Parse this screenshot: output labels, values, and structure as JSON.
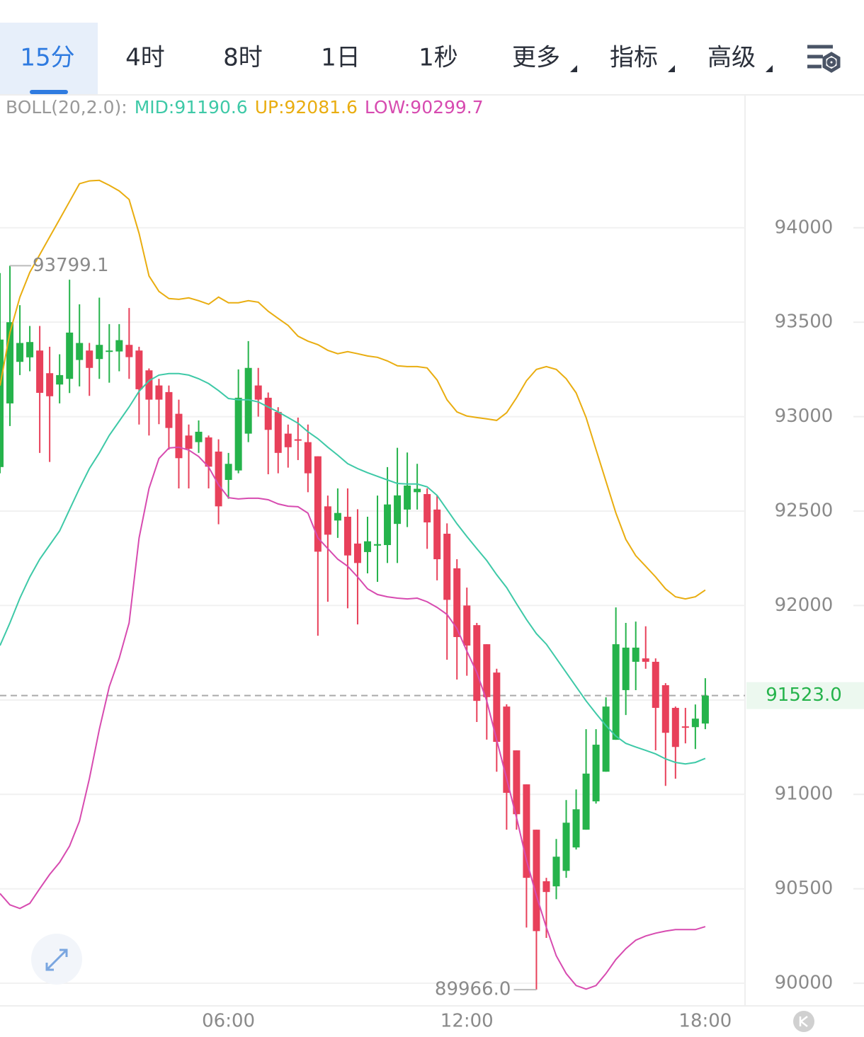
{
  "toolbar": {
    "tabs": [
      {
        "label": "15分",
        "menu": false
      },
      {
        "label": "4时",
        "menu": false
      },
      {
        "label": "8时",
        "menu": false
      },
      {
        "label": "1日",
        "menu": false
      },
      {
        "label": "1秒",
        "menu": false
      },
      {
        "label": "更多",
        "menu": true
      },
      {
        "label": "指标",
        "menu": true
      },
      {
        "label": "高级",
        "menu": true
      }
    ],
    "active": 0
  },
  "chart_data": {
    "type": "candlestick",
    "indicator": "BOLL(20,2.0):",
    "up_color": "#25b34b",
    "down_color": "#e8405a",
    "xlim": [
      0.25,
      19
    ],
    "xticks": [
      {
        "value": 6,
        "label": "06:00"
      },
      {
        "value": 12,
        "label": "12:00"
      },
      {
        "value": 18,
        "label": "18:00"
      }
    ],
    "ylim": [
      89884,
      94700
    ],
    "yticks": [
      90000,
      90500,
      91000,
      91500,
      92000,
      92500,
      93000,
      93500,
      94000
    ],
    "grid": true,
    "x": [
      0.25,
      0.5,
      0.75,
      1,
      1.25,
      1.5,
      1.75,
      2,
      2.25,
      2.5,
      2.75,
      3,
      3.25,
      3.5,
      3.75,
      4,
      4.25,
      4.5,
      4.75,
      5,
      5.25,
      5.5,
      5.75,
      6,
      6.25,
      6.5,
      6.75,
      7,
      7.25,
      7.5,
      7.75,
      8,
      8.25,
      8.5,
      8.75,
      9,
      9.25,
      9.5,
      9.75,
      10,
      10.25,
      10.5,
      10.75,
      11,
      11.25,
      11.5,
      11.75,
      12,
      12.25,
      12.5,
      12.75,
      13,
      13.25,
      13.5,
      13.75,
      14,
      14.25,
      14.5,
      14.75,
      15,
      15.25,
      15.5,
      15.75,
      16,
      16.25,
      16.5,
      16.75,
      17,
      17.25,
      17.5,
      17.75,
      18
    ],
    "open": [
      92733,
      93070,
      93290,
      93314,
      93350,
      93230,
      93170,
      93200,
      93300,
      93350,
      93305,
      93345,
      93345,
      93380,
      93350,
      93245,
      93165,
      93130,
      93015,
      92900,
      92865,
      92890,
      92815,
      92665,
      92715,
      92910,
      93165,
      93100,
      93025,
      92910,
      92880,
      92865,
      92790,
      92525,
      92450,
      92470,
      92328,
      92283,
      92317,
      92320,
      92432,
      92508,
      92600,
      92590,
      92508,
      92380,
      92197,
      92000,
      91896,
      91795,
      91645,
      91465,
      91233,
      91053,
      90813,
      90540,
      90513,
      90595,
      90719,
      90813,
      90963,
      91120,
      91289,
      91552,
      91702,
      91720,
      91702,
      91578,
      91458,
      91360,
      91356,
      91375
    ],
    "high": [
      93760,
      93799.1,
      93590,
      93480,
      93480,
      93370,
      93330,
      93725,
      93595,
      93390,
      93630,
      93490,
      93490,
      93575,
      93370,
      93255,
      93200,
      93165,
      93090,
      92958,
      92980,
      92900,
      92880,
      92808,
      93250,
      93400,
      93258,
      93128,
      93050,
      92958,
      92995,
      92958,
      92790,
      92582,
      92620,
      92620,
      92510,
      92470,
      92582,
      92733,
      92835,
      92810,
      92750,
      92620,
      92582,
      92435,
      92245,
      92095,
      91908,
      91795,
      91665,
      91477,
      91233,
      91053,
      90813,
      90558,
      90764,
      90970,
      91026,
      91345,
      91345,
      91514,
      91990,
      91908,
      91915,
      91890,
      91720,
      91589,
      91465,
      91458,
      91476,
      91615
    ],
    "low": [
      92700,
      92950,
      93220,
      93240,
      92808,
      92760,
      93070,
      93125,
      93160,
      93110,
      93200,
      93180,
      93240,
      93200,
      92958,
      92900,
      92960,
      92825,
      92620,
      92620,
      92808,
      92620,
      92430,
      92565,
      92700,
      92865,
      93000,
      92695,
      92700,
      92730,
      92770,
      92600,
      91840,
      92020,
      92358,
      91985,
      91900,
      92170,
      92125,
      92225,
      92225,
      92415,
      92508,
      92300,
      92133,
      91713,
      91608,
      91628,
      91383,
      91290,
      91120,
      90813,
      90813,
      90295,
      89966,
      90240,
      90445,
      90558,
      90708,
      90813,
      90951,
      91120,
      91289,
      91420,
      91552,
      91665,
      91233,
      91045,
      91083,
      91270,
      91240,
      91345
    ],
    "close": [
      93408,
      93500,
      93390,
      93395,
      93126,
      93108,
      93220,
      93445,
      93390,
      93258,
      93380,
      93350,
      93405,
      93315,
      93145,
      93090,
      93090,
      92940,
      92780,
      92830,
      92920,
      92735,
      92525,
      92750,
      93100,
      93258,
      93090,
      92930,
      92808,
      92838,
      92873,
      92700,
      92285,
      92375,
      92490,
      92265,
      92225,
      92340,
      92325,
      92535,
      92583,
      92635,
      92618,
      92440,
      92245,
      92030,
      91833,
      91788,
      91495,
      91515,
      91278,
      91008,
      90895,
      90558,
      90276,
      90483,
      90670,
      90850,
      90921,
      91110,
      91263,
      91465,
      91795,
      91777,
      91777,
      91702,
      91458,
      91326,
      91251,
      91354,
      91401,
      91523
    ],
    "series": [
      {
        "name": "MID:91190.6",
        "color": "#3ec9a7",
        "values": [
          91788,
          91908,
          92039,
          92151,
          92245,
          92320,
          92395,
          92508,
          92620,
          92725,
          92808,
          92901,
          92976,
          93051,
          93134,
          93190,
          93220,
          93228,
          93228,
          93220,
          93201,
          93175,
          93138,
          93096,
          93089,
          93089,
          93078,
          93051,
          93025,
          92995,
          92965,
          92920,
          92883,
          92838,
          92796,
          92751,
          92725,
          92703,
          92684,
          92665,
          92646,
          92643,
          92643,
          92628,
          92583,
          92508,
          92433,
          92365,
          92301,
          92238,
          92163,
          92095,
          92009,
          91926,
          91851,
          91795,
          91720,
          91645,
          91570,
          91495,
          91428,
          91364,
          91308,
          91270,
          91251,
          91233,
          91214,
          91188,
          91169,
          91161,
          91169,
          91190.6
        ]
      },
      {
        "name": "UP:92081.6",
        "color": "#e9ad10",
        "values": [
          93164,
          93445,
          93633,
          93764,
          93858,
          93951,
          94045,
          94139,
          94233,
          94248,
          94251,
          94225,
          94195,
          94150,
          93970,
          93745,
          93663,
          93625,
          93621,
          93629,
          93614,
          93595,
          93633,
          93603,
          93603,
          93614,
          93606,
          93558,
          93520,
          93483,
          93426,
          93400,
          93381,
          93351,
          93333,
          93344,
          93333,
          93321,
          93314,
          93295,
          93269,
          93265,
          93265,
          93258,
          93194,
          93089,
          93025,
          93003,
          92995,
          92988,
          92980,
          93021,
          93100,
          93190,
          93250,
          93265,
          93250,
          93201,
          93126,
          92995,
          92826,
          92658,
          92489,
          92350,
          92264,
          92208,
          92151,
          92088,
          92046,
          92035,
          92046,
          92081.6
        ]
      },
      {
        "name": "LOW:90299.7",
        "color": "#d74bb0",
        "values": [
          90475,
          90415,
          90396,
          90423,
          90501,
          90576,
          90640,
          90726,
          90858,
          91083,
          91345,
          91570,
          91720,
          91908,
          92358,
          92620,
          92778,
          92834,
          92838,
          92823,
          92789,
          92733,
          92639,
          92571,
          92564,
          92568,
          92568,
          92560,
          92538,
          92526,
          92523,
          92489,
          92358,
          92301,
          92245,
          92208,
          92151,
          92088,
          92058,
          92046,
          92039,
          92035,
          92039,
          92020,
          91990,
          91953,
          91878,
          91758,
          91645,
          91495,
          91289,
          91083,
          90876,
          90651,
          90464,
          90295,
          90145,
          90051,
          89988,
          89969,
          89988,
          90051,
          90126,
          90183,
          90228,
          90250,
          90265,
          90276,
          90284,
          90284,
          90284,
          90299.7
        ]
      }
    ],
    "annotations": [
      {
        "x": 0.5,
        "value": 93799.1,
        "label": "93799.1"
      },
      {
        "x": 13.75,
        "value": 89966,
        "label": "89966.0"
      }
    ],
    "last_price": {
      "value": 91523,
      "label": "91523.0"
    }
  }
}
